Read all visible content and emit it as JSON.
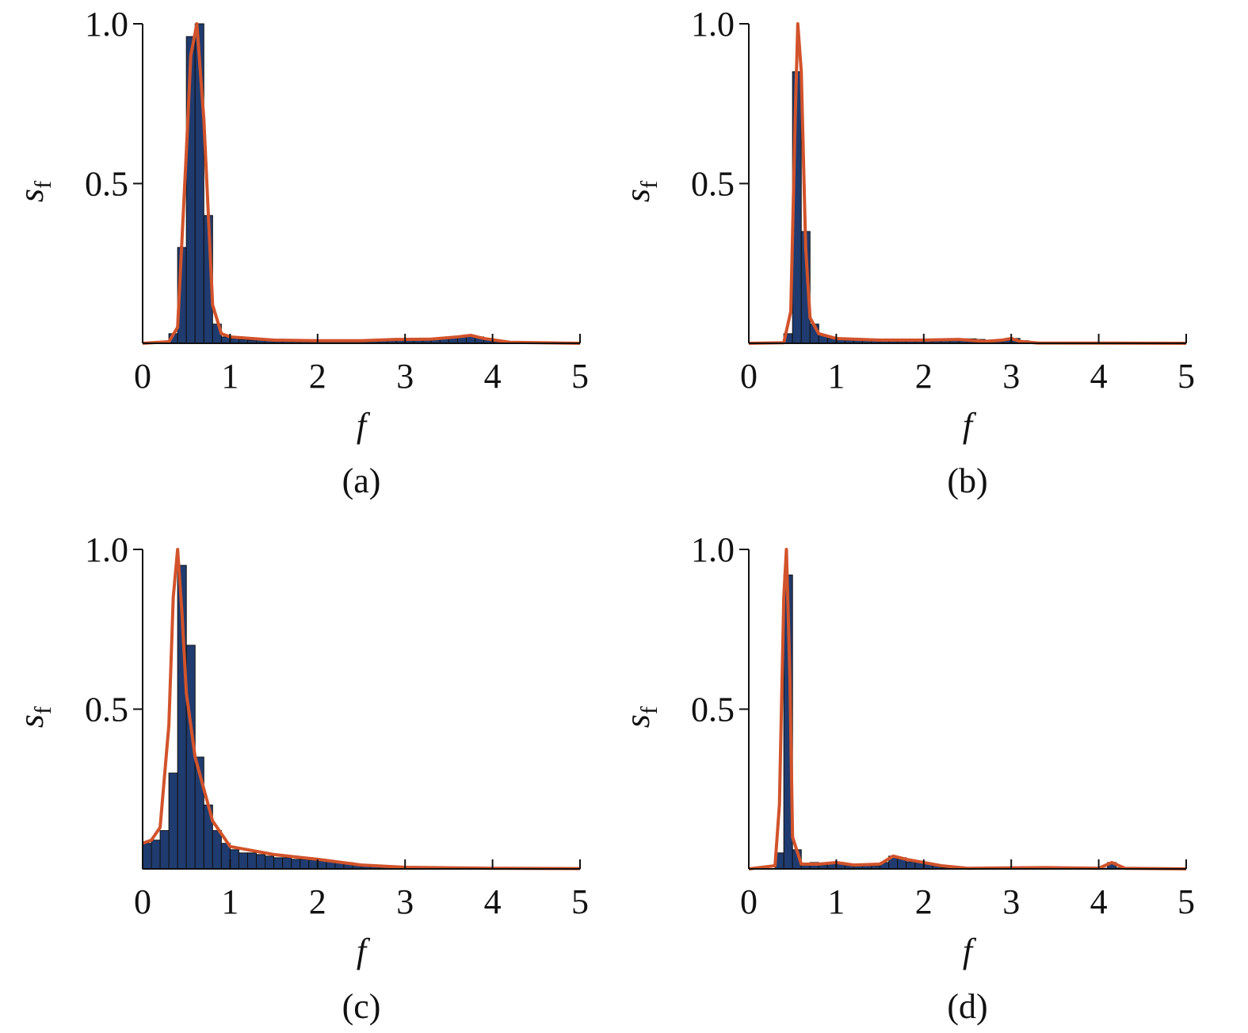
{
  "chart_data": [
    {
      "type": "histogram",
      "panel": "(a)",
      "xlabel": "f",
      "ylabel": "s",
      "ylabel_subscript": "f",
      "bar_color": "#1f3b6f",
      "line_color": "#d2532b",
      "xlim": [
        0,
        5
      ],
      "ylim": [
        0,
        1
      ],
      "xticks": [
        0,
        1,
        2,
        3,
        4,
        5
      ],
      "yticks": [
        0.5,
        {
          "value": 1,
          "label": "1.0"
        }
      ],
      "bins": [
        0,
        0.1,
        0.2,
        0.3,
        0.4,
        0.5,
        0.6,
        0.7,
        0.8,
        0.9,
        1,
        1.1,
        1.2,
        1.3,
        1.4,
        1.5,
        1.6,
        1.7,
        1.8,
        1.9,
        2,
        2.1,
        2.2,
        2.3,
        2.4,
        2.5,
        2.6,
        2.7,
        2.8,
        2.9,
        3,
        3.1,
        3.2,
        3.3,
        3.4,
        3.5,
        3.6,
        3.7,
        3.8,
        3.9,
        4,
        4.1,
        4.2,
        4.3,
        4.4,
        4.5,
        4.6,
        4.7,
        4.8,
        4.9,
        5
      ],
      "values": [
        0,
        0,
        0,
        0.03,
        0.3,
        0.96,
        1.0,
        0.4,
        0.06,
        0.02,
        0.015,
        0.012,
        0.01,
        0.01,
        0.009,
        0.008,
        0.008,
        0.007,
        0.007,
        0.007,
        0.007,
        0.007,
        0.007,
        0.007,
        0.008,
        0.008,
        0.009,
        0.01,
        0.012,
        0.014,
        0.015,
        0.016,
        0.015,
        0.016,
        0.018,
        0.02,
        0.022,
        0.025,
        0.02,
        0.012,
        0.006,
        0.003,
        0.002,
        0.001,
        0,
        0,
        0,
        0,
        0,
        0
      ],
      "line": {
        "x": [
          0,
          0.3,
          0.4,
          0.5,
          0.55,
          0.62,
          0.7,
          0.8,
          0.9,
          1.0,
          1.5,
          2,
          2.5,
          2.9,
          3.3,
          3.6,
          3.75,
          3.9,
          4.2,
          5
        ],
        "values": [
          0,
          0.005,
          0.05,
          0.6,
          0.9,
          1.0,
          0.7,
          0.12,
          0.03,
          0.02,
          0.01,
          0.008,
          0.008,
          0.012,
          0.013,
          0.02,
          0.025,
          0.015,
          0.003,
          0
        ]
      }
    },
    {
      "type": "histogram",
      "panel": "(b)",
      "xlabel": "f",
      "ylabel": "s",
      "ylabel_subscript": "f",
      "bar_color": "#1f3b6f",
      "line_color": "#d2532b",
      "xlim": [
        0,
        5
      ],
      "ylim": [
        0,
        1
      ],
      "xticks": [
        0,
        1,
        2,
        3,
        4,
        5
      ],
      "yticks": [
        0.5,
        {
          "value": 1,
          "label": "1.0"
        }
      ],
      "bins": [
        0,
        0.1,
        0.2,
        0.3,
        0.4,
        0.5,
        0.6,
        0.7,
        0.8,
        0.9,
        1,
        1.1,
        1.2,
        1.3,
        1.4,
        1.5,
        1.6,
        1.7,
        1.8,
        1.9,
        2,
        2.1,
        2.2,
        2.3,
        2.4,
        2.5,
        2.6,
        2.7,
        2.8,
        2.9,
        3,
        3.1,
        3.2,
        3.3,
        3.4,
        3.5,
        3.6,
        3.7,
        3.8,
        3.9,
        4,
        4.1,
        4.2,
        4.3,
        4.4,
        4.5,
        4.6,
        4.7,
        4.8,
        4.9,
        5
      ],
      "values": [
        0,
        0,
        0,
        0,
        0.03,
        0.85,
        0.35,
        0.06,
        0.025,
        0.015,
        0.012,
        0.01,
        0.01,
        0.009,
        0.008,
        0.008,
        0.009,
        0.01,
        0.01,
        0.01,
        0.011,
        0.012,
        0.012,
        0.013,
        0.014,
        0.014,
        0.012,
        0.01,
        0.008,
        0.01,
        0.015,
        0.008,
        0.004,
        0.002,
        0.001,
        0,
        0,
        0,
        0,
        0,
        0,
        0,
        0,
        0,
        0,
        0,
        0,
        0,
        0,
        0
      ],
      "line": {
        "x": [
          0,
          0.4,
          0.48,
          0.53,
          0.56,
          0.6,
          0.65,
          0.7,
          0.8,
          1,
          1.5,
          2,
          2.4,
          2.7,
          2.9,
          3.0,
          3.1,
          3.3,
          5
        ],
        "values": [
          0,
          0.002,
          0.1,
          0.7,
          1.0,
          0.85,
          0.3,
          0.08,
          0.03,
          0.015,
          0.01,
          0.01,
          0.012,
          0.006,
          0.01,
          0.015,
          0.006,
          0.001,
          0
        ]
      }
    },
    {
      "type": "histogram",
      "panel": "(c)",
      "xlabel": "f",
      "ylabel": "s",
      "ylabel_subscript": "f",
      "bar_color": "#1f3b6f",
      "line_color": "#d2532b",
      "xlim": [
        0,
        5
      ],
      "ylim": [
        0,
        1
      ],
      "xticks": [
        0,
        1,
        2,
        3,
        4,
        5
      ],
      "yticks": [
        0.5,
        {
          "value": 1,
          "label": "1.0"
        }
      ],
      "bins": [
        0,
        0.1,
        0.2,
        0.3,
        0.4,
        0.5,
        0.6,
        0.7,
        0.8,
        0.9,
        1,
        1.1,
        1.2,
        1.3,
        1.4,
        1.5,
        1.6,
        1.7,
        1.8,
        1.9,
        2,
        2.1,
        2.2,
        2.3,
        2.4,
        2.5,
        2.6,
        2.7,
        2.8,
        2.9,
        3,
        3.1,
        3.2,
        3.3,
        3.4,
        3.5,
        3.6,
        3.7,
        3.8,
        3.9,
        4,
        4.1,
        4.2,
        4.3,
        4.4,
        4.5,
        4.6,
        4.7,
        4.8,
        4.9,
        5
      ],
      "values": [
        0.08,
        0.09,
        0.12,
        0.3,
        0.95,
        0.7,
        0.35,
        0.2,
        0.12,
        0.08,
        0.06,
        0.05,
        0.05,
        0.045,
        0.04,
        0.035,
        0.035,
        0.03,
        0.03,
        0.028,
        0.025,
        0.025,
        0.022,
        0.02,
        0.015,
        0.012,
        0.01,
        0.008,
        0.007,
        0.006,
        0.005,
        0.005,
        0.005,
        0.004,
        0.004,
        0.003,
        0.003,
        0.003,
        0.003,
        0.003,
        0.002,
        0.002,
        0.002,
        0.001,
        0.001,
        0.001,
        0.001,
        0.001,
        0.001,
        0.001
      ],
      "line": {
        "x": [
          0,
          0.1,
          0.2,
          0.3,
          0.35,
          0.4,
          0.45,
          0.5,
          0.6,
          0.7,
          0.8,
          1,
          1.2,
          1.5,
          2,
          2.5,
          3,
          4,
          5
        ],
        "values": [
          0.08,
          0.09,
          0.13,
          0.45,
          0.85,
          1.0,
          0.8,
          0.55,
          0.35,
          0.25,
          0.15,
          0.07,
          0.06,
          0.045,
          0.03,
          0.012,
          0.005,
          0.002,
          0.001
        ]
      }
    },
    {
      "type": "histogram",
      "panel": "(d)",
      "xlabel": "f",
      "ylabel": "s",
      "ylabel_subscript": "f",
      "bar_color": "#1f3b6f",
      "line_color": "#d2532b",
      "xlim": [
        0,
        5
      ],
      "ylim": [
        0,
        1
      ],
      "xticks": [
        0,
        1,
        2,
        3,
        4,
        5
      ],
      "yticks": [
        0.5,
        {
          "value": 1,
          "label": "1.0"
        }
      ],
      "bins": [
        0,
        0.1,
        0.2,
        0.3,
        0.4,
        0.5,
        0.6,
        0.7,
        0.8,
        0.9,
        1,
        1.1,
        1.2,
        1.3,
        1.4,
        1.5,
        1.6,
        1.7,
        1.8,
        1.9,
        2,
        2.1,
        2.2,
        2.3,
        2.4,
        2.5,
        2.6,
        2.7,
        2.8,
        2.9,
        3,
        3.1,
        3.2,
        3.3,
        3.4,
        3.5,
        3.6,
        3.7,
        3.8,
        3.9,
        4,
        4.1,
        4.2,
        4.3,
        4.4,
        4.5,
        4.6,
        4.7,
        4.8,
        4.9,
        5
      ],
      "values": [
        0,
        0,
        0,
        0.05,
        0.92,
        0.06,
        0.015,
        0.02,
        0.012,
        0.018,
        0.02,
        0.012,
        0.01,
        0.012,
        0.01,
        0.02,
        0.04,
        0.035,
        0.022,
        0.02,
        0.015,
        0.01,
        0.004,
        0.003,
        0.002,
        0.002,
        0.002,
        0.002,
        0.002,
        0.002,
        0.002,
        0.002,
        0.002,
        0.002,
        0.005,
        0.002,
        0.002,
        0.002,
        0.002,
        0.002,
        0.002,
        0.02,
        0.003,
        0.001,
        0,
        0,
        0,
        0,
        0,
        0
      ],
      "line": {
        "x": [
          0,
          0.3,
          0.35,
          0.4,
          0.43,
          0.47,
          0.5,
          0.6,
          0.8,
          1,
          1.2,
          1.5,
          1.65,
          1.8,
          2,
          2.2,
          2.5,
          3.4,
          4,
          4.15,
          4.3,
          5
        ],
        "values": [
          0,
          0.01,
          0.2,
          0.85,
          1.0,
          0.6,
          0.1,
          0.015,
          0.015,
          0.02,
          0.012,
          0.015,
          0.04,
          0.03,
          0.02,
          0.01,
          0.002,
          0.004,
          0.002,
          0.02,
          0.002,
          0
        ]
      }
    }
  ]
}
